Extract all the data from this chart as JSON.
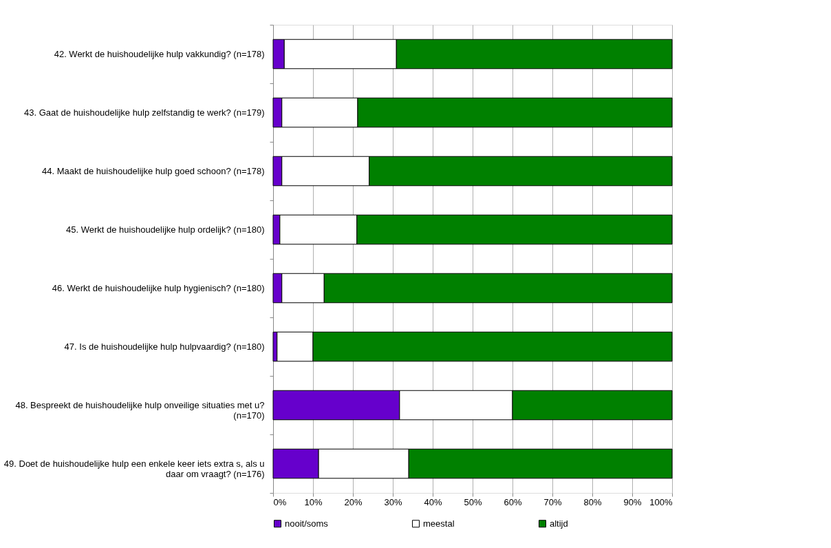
{
  "chart_data": {
    "type": "bar",
    "orientation": "horizontal",
    "stacked": true,
    "categories": [
      "42. Werkt de huishoudelijke hulp vakkundig? (n=178)",
      "43. Gaat de huishoudelijke hulp zelfstandig te werk? (n=179)",
      "44. Maakt de huishoudelijke hulp goed schoon? (n=178)",
      "45. Werkt de huishoudelijke hulp ordelijk?  (n=180)",
      "46. Werkt de huishoudelijke hulp hygienisch?  (n=180)",
      "47. Is de huishoudelijke hulp hulpvaardig? (n=180)",
      "48. Bespreekt de huishoudelijke hulp onveilige situaties met u?\n(n=170)",
      "49. Doet de huishoudelijke hulp een enkele keer iets extra s, als u\ndaar om vraagt? (n=176)"
    ],
    "series": [
      {
        "name": "nooit/soms",
        "color": "#6600cc",
        "values": [
          2.8,
          2.2,
          2.2,
          1.7,
          2.2,
          1.0,
          31.7,
          11.4
        ]
      },
      {
        "name": "meestal",
        "color": "#ffffff",
        "values": [
          28.1,
          19.0,
          21.9,
          19.3,
          10.6,
          9.0,
          28.3,
          22.6
        ]
      },
      {
        "name": "altijd",
        "color": "#008000",
        "values": [
          69.1,
          78.8,
          75.9,
          79.0,
          87.2,
          90.0,
          40.0,
          66.0
        ]
      }
    ],
    "xlim": [
      0,
      100
    ],
    "xticks": [
      {
        "value": 0,
        "label": "0%"
      },
      {
        "value": 10,
        "label": "10%"
      },
      {
        "value": 20,
        "label": "20%"
      },
      {
        "value": 30,
        "label": "30%"
      },
      {
        "value": 40,
        "label": "40%"
      },
      {
        "value": 50,
        "label": "50%"
      },
      {
        "value": 60,
        "label": "60%"
      },
      {
        "value": 70,
        "label": "70%"
      },
      {
        "value": 80,
        "label": "80%"
      },
      {
        "value": 90,
        "label": "90%"
      },
      {
        "value": 100,
        "label": "100%"
      }
    ],
    "grid": "x",
    "legend": "bottom"
  }
}
